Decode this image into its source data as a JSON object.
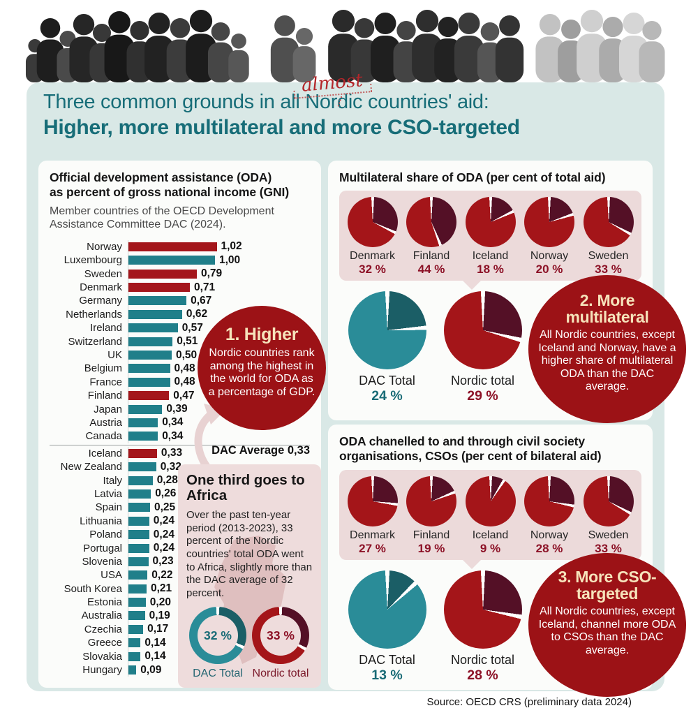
{
  "header": {
    "almost": "almost",
    "title_line1": "Three common grounds in all Nordic countries' aid:",
    "title_line2": "Higher, more multilateral and more CSO-targeted"
  },
  "left_panel": {
    "title_line1": "Official development assistance (ODA)",
    "title_line2": "as percent of gross national income (GNI)",
    "subtitle": "Member countries of the OECD Development Assistance Committee DAC (2024).",
    "dac_average_label": "DAC Average 0,33"
  },
  "callouts": [
    {
      "title": "1. Higher",
      "body": "Nordic countries rank among the highest in the world for ODA as a percentage of GDP."
    },
    {
      "title": "2. More multilateral",
      "body": "All Nordic countries, except Iceland and Norway, have a higher share of multilateral ODA than the DAC average."
    },
    {
      "title": "3. More CSO-targeted",
      "body": "All Nordic countries, except Iceland, channel more ODA to CSOs than the DAC average."
    }
  ],
  "footer": {
    "source": "Source: OECD CRS (preliminary data 2024)"
  },
  "colors": {
    "panel_bg": "#d9e8e6",
    "card_bg": "#fbfcfa",
    "pink_bg": "#ecdada",
    "title_teal": "#176d78",
    "callout_bg": "#9c1216",
    "callout_title": "#f6e3bb",
    "red_main": "#a41519",
    "red_dark": "#541026",
    "teal_main": "#2a8c98",
    "teal_dark": "#1b5e66",
    "bar_red": "#a4161b",
    "bar_teal": "#207f8a",
    "pct_red_text": "#8c1126",
    "pct_teal_text": "#196b76"
  },
  "chart_data": [
    {
      "id": "oda-gni",
      "type": "bar",
      "orientation": "horizontal",
      "title": "Official development assistance (ODA) as percent of gross national income (GNI)",
      "subtitle": "Member countries of the OECD Development Assistance Committee DAC (2024).",
      "xlim": [
        0,
        1.1
      ],
      "dac_average": 0.33,
      "divider_before": "Iceland",
      "bars": [
        {
          "country": "Norway",
          "value": 1.02,
          "label": "1,02",
          "nordic": true
        },
        {
          "country": "Luxembourg",
          "value": 1.0,
          "label": "1,00",
          "nordic": false
        },
        {
          "country": "Sweden",
          "value": 0.79,
          "label": "0,79",
          "nordic": true
        },
        {
          "country": "Denmark",
          "value": 0.71,
          "label": "0,71",
          "nordic": true
        },
        {
          "country": "Germany",
          "value": 0.67,
          "label": "0,67",
          "nordic": false
        },
        {
          "country": "Netherlands",
          "value": 0.62,
          "label": "0,62",
          "nordic": false
        },
        {
          "country": "Ireland",
          "value": 0.57,
          "label": "0,57",
          "nordic": false
        },
        {
          "country": "Switzerland",
          "value": 0.51,
          "label": "0,51",
          "nordic": false
        },
        {
          "country": "UK",
          "value": 0.5,
          "label": "0,50",
          "nordic": false
        },
        {
          "country": "Belgium",
          "value": 0.48,
          "label": "0,48",
          "nordic": false
        },
        {
          "country": "France",
          "value": 0.48,
          "label": "0,48",
          "nordic": false
        },
        {
          "country": "Finland",
          "value": 0.47,
          "label": "0,47",
          "nordic": true
        },
        {
          "country": "Japan",
          "value": 0.39,
          "label": "0,39",
          "nordic": false
        },
        {
          "country": "Austria",
          "value": 0.34,
          "label": "0,34",
          "nordic": false
        },
        {
          "country": "Canada",
          "value": 0.34,
          "label": "0,34",
          "nordic": false
        },
        {
          "country": "Iceland",
          "value": 0.33,
          "label": "0,33",
          "nordic": true
        },
        {
          "country": "New Zealand",
          "value": 0.32,
          "label": "0,32",
          "nordic": false
        },
        {
          "country": "Italy",
          "value": 0.28,
          "label": "0,28",
          "nordic": false
        },
        {
          "country": "Latvia",
          "value": 0.26,
          "label": "0,26",
          "nordic": false
        },
        {
          "country": "Spain",
          "value": 0.25,
          "label": "0,25",
          "nordic": false
        },
        {
          "country": "Lithuania",
          "value": 0.24,
          "label": "0,24",
          "nordic": false
        },
        {
          "country": "Poland",
          "value": 0.24,
          "label": "0,24",
          "nordic": false
        },
        {
          "country": "Portugal",
          "value": 0.24,
          "label": "0,24",
          "nordic": false
        },
        {
          "country": "Slovenia",
          "value": 0.23,
          "label": "0,23",
          "nordic": false
        },
        {
          "country": "USA",
          "value": 0.22,
          "label": "0,22",
          "nordic": false
        },
        {
          "country": "South Korea",
          "value": 0.21,
          "label": "0,21",
          "nordic": false
        },
        {
          "country": "Estonia",
          "value": 0.2,
          "label": "0,20",
          "nordic": false
        },
        {
          "country": "Australia",
          "value": 0.19,
          "label": "0,19",
          "nordic": false
        },
        {
          "country": "Czechia",
          "value": 0.17,
          "label": "0,17",
          "nordic": false
        },
        {
          "country": "Greece",
          "value": 0.14,
          "label": "0,14",
          "nordic": false
        },
        {
          "country": "Slovakia",
          "value": 0.14,
          "label": "0,14",
          "nordic": false
        },
        {
          "country": "Hungary",
          "value": 0.09,
          "label": "0,09",
          "nordic": false
        }
      ]
    },
    {
      "id": "multilateral-share",
      "type": "pie",
      "title": "Multilateral share of ODA (per cent of total aid)",
      "countries": [
        {
          "name": "Denmark",
          "value": 32,
          "label": "32 %"
        },
        {
          "name": "Finland",
          "value": 44,
          "label": "44 %"
        },
        {
          "name": "Iceland",
          "value": 18,
          "label": "18 %"
        },
        {
          "name": "Norway",
          "value": 20,
          "label": "20 %"
        },
        {
          "name": "Sweden",
          "value": 33,
          "label": "33 %"
        }
      ],
      "totals": [
        {
          "name": "DAC Total",
          "value": 24,
          "label": "24 %",
          "scheme": "teal"
        },
        {
          "name": "Nordic total",
          "value": 29,
          "label": "29 %",
          "scheme": "red"
        }
      ]
    },
    {
      "id": "cso-share",
      "type": "pie",
      "title": "ODA chanelled to and through civil society organisations, CSOs (per cent of bilateral aid)",
      "countries": [
        {
          "name": "Denmark",
          "value": 27,
          "label": "27 %"
        },
        {
          "name": "Finland",
          "value": 19,
          "label": "19 %"
        },
        {
          "name": "Iceland",
          "value": 9,
          "label": "9 %"
        },
        {
          "name": "Norway",
          "value": 28,
          "label": "28 %"
        },
        {
          "name": "Sweden",
          "value": 33,
          "label": "33 %"
        }
      ],
      "totals": [
        {
          "name": "DAC Total",
          "value": 13,
          "label": "13 %",
          "scheme": "teal"
        },
        {
          "name": "Nordic total",
          "value": 28,
          "label": "28 %",
          "scheme": "red"
        }
      ]
    },
    {
      "id": "africa-share",
      "type": "donut",
      "title": "One third goes to Africa",
      "body": "Over the past ten-year period (2013-2023), 33 percent of the Nordic countries' total ODA went to Africa, slightly more than the DAC average of 32 percent.",
      "donuts": [
        {
          "name": "DAC Total",
          "value": 32,
          "label": "32 %",
          "scheme": "teal"
        },
        {
          "name": "Nordic total",
          "value": 33,
          "label": "33 %",
          "scheme": "red"
        }
      ]
    }
  ]
}
